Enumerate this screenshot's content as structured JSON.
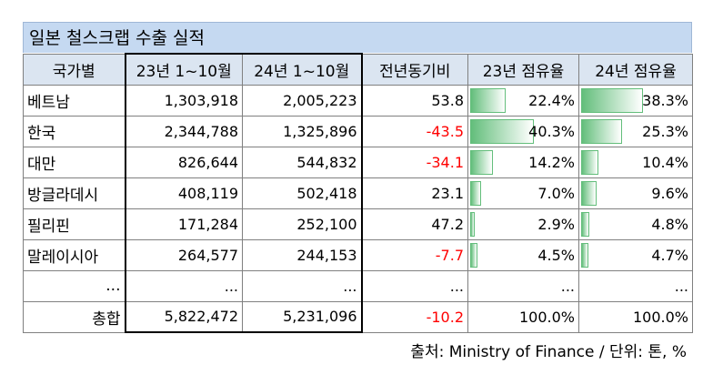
{
  "title": "일본 철스크랩 수출 실적",
  "headers": [
    "국가별",
    "23년 1~10월",
    "24년 1~10월",
    "전년동기비",
    "23년 점유율",
    "24년 점유율"
  ],
  "rows": [
    {
      "country": "베트남",
      "y23": "1,303,918",
      "y24": "2,005,223",
      "yoy": "53.8",
      "share23": "22.4%",
      "share24": "38.3%",
      "share23_val": 22.4,
      "share24_val": 38.3
    },
    {
      "country": "한국",
      "y23": "2,344,788",
      "y24": "1,325,896",
      "yoy": "-43.5",
      "share23": "40.3%",
      "share24": "25.3%",
      "share23_val": 40.3,
      "share24_val": 25.3
    },
    {
      "country": "대만",
      "y23": "826,644",
      "y24": "544,832",
      "yoy": "-34.1",
      "share23": "14.2%",
      "share24": "10.4%",
      "share23_val": 14.2,
      "share24_val": 10.4
    },
    {
      "country": "방글라데시",
      "y23": "408,119",
      "y24": "502,418",
      "yoy": "23.1",
      "share23": "7.0%",
      "share24": "9.6%",
      "share23_val": 7.0,
      "share24_val": 9.6
    },
    {
      "country": "필리핀",
      "y23": "171,284",
      "y24": "252,100",
      "yoy": "47.2",
      "share23": "2.9%",
      "share24": "4.8%",
      "share23_val": 2.9,
      "share24_val": 4.8
    },
    {
      "country": "말레이시아",
      "y23": "264,577",
      "y24": "244,153",
      "yoy": "-7.7",
      "share23": "4.5%",
      "share24": "4.7%",
      "share23_val": 4.5,
      "share24_val": 4.7
    },
    {
      "country": "...",
      "y23": "...",
      "y24": "...",
      "yoy": "...",
      "share23": "...",
      "share24": "...",
      "ellipsis": true
    }
  ],
  "total": {
    "label": "총합",
    "y23": "5,822,472",
    "y24": "5,231,096",
    "yoy": "-10.2",
    "share23": "100.0%",
    "share24": "100.0%"
  },
  "source": "출처: Ministry of Finance / 단위: 톤, %",
  "colors": {
    "header_bg": "#dbe5f1",
    "title_bg": "#c5d9f1",
    "negative": "#ff0000",
    "bar": "#63be7b"
  }
}
